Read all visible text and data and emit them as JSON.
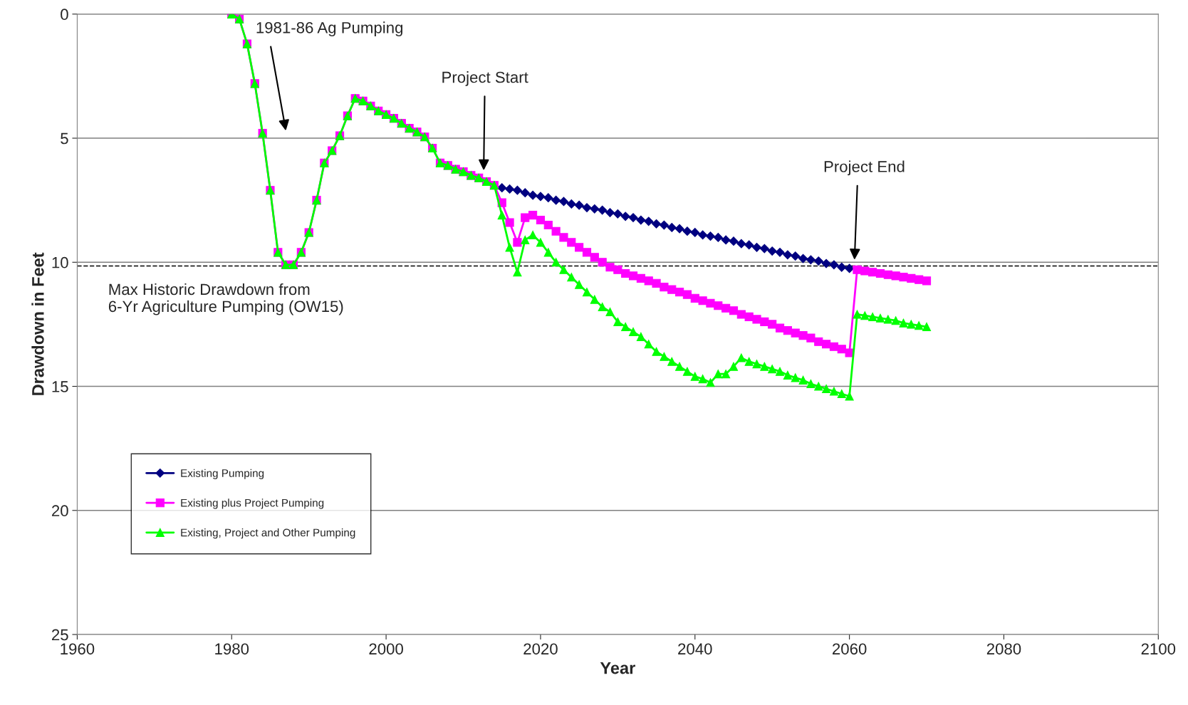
{
  "chart_data": {
    "type": "line",
    "xlabel": "Year",
    "ylabel": "Drawdown in Feet",
    "x": [
      1980,
      1981,
      1982,
      1983,
      1984,
      1985,
      1986,
      1987,
      1988,
      1989,
      1990,
      1991,
      1992,
      1993,
      1994,
      1995,
      1996,
      1997,
      1998,
      1999,
      2000,
      2001,
      2002,
      2003,
      2004,
      2005,
      2006,
      2007,
      2008,
      2009,
      2010,
      2011,
      2012,
      2013,
      2014,
      2015,
      2016,
      2017,
      2018,
      2019,
      2020,
      2021,
      2022,
      2023,
      2024,
      2025,
      2026,
      2027,
      2028,
      2029,
      2030,
      2031,
      2032,
      2033,
      2034,
      2035,
      2036,
      2037,
      2038,
      2039,
      2040,
      2041,
      2042,
      2043,
      2044,
      2045,
      2046,
      2047,
      2048,
      2049,
      2050,
      2051,
      2052,
      2053,
      2054,
      2055,
      2056,
      2057,
      2058,
      2059,
      2060,
      2061,
      2062,
      2063,
      2064,
      2065,
      2066,
      2067,
      2068,
      2069,
      2070
    ],
    "series": [
      {
        "name": "Existing Pumping",
        "color": "#000080",
        "marker": "diamond",
        "values": [
          null,
          null,
          null,
          null,
          null,
          null,
          null,
          null,
          null,
          null,
          null,
          null,
          null,
          null,
          null,
          null,
          null,
          null,
          null,
          null,
          null,
          null,
          null,
          null,
          null,
          null,
          null,
          null,
          null,
          null,
          null,
          null,
          null,
          null,
          null,
          7.0,
          7.05,
          7.1,
          7.2,
          7.3,
          7.35,
          7.4,
          7.5,
          7.55,
          7.65,
          7.7,
          7.8,
          7.85,
          7.9,
          8.0,
          8.05,
          8.15,
          8.2,
          8.3,
          8.35,
          8.45,
          8.5,
          8.6,
          8.65,
          8.75,
          8.8,
          8.9,
          8.95,
          9.0,
          9.1,
          9.15,
          9.25,
          9.3,
          9.4,
          9.45,
          9.55,
          9.6,
          9.7,
          9.75,
          9.85,
          9.9,
          9.95,
          10.05,
          10.1,
          10.2,
          10.25,
          null,
          null,
          null,
          null,
          null,
          null,
          null,
          null,
          null,
          null
        ]
      },
      {
        "name": "Existing plus Project Pumping",
        "color": "#ff00ff",
        "marker": "square",
        "values": [
          0,
          0.2,
          1.2,
          2.8,
          4.8,
          7.1,
          9.6,
          10.1,
          10.1,
          9.6,
          8.8,
          7.5,
          6.0,
          5.5,
          4.9,
          4.1,
          3.4,
          3.5,
          3.7,
          3.9,
          4.05,
          4.2,
          4.4,
          4.6,
          4.75,
          4.95,
          5.4,
          6.0,
          6.1,
          6.25,
          6.35,
          6.5,
          6.6,
          6.75,
          6.9,
          7.6,
          8.4,
          9.2,
          8.2,
          8.1,
          8.3,
          8.5,
          8.75,
          9.0,
          9.2,
          9.4,
          9.6,
          9.8,
          10.0,
          10.2,
          10.3,
          10.45,
          10.55,
          10.65,
          10.75,
          10.85,
          11.0,
          11.1,
          11.2,
          11.3,
          11.45,
          11.55,
          11.65,
          11.75,
          11.85,
          11.95,
          12.1,
          12.2,
          12.3,
          12.4,
          12.5,
          12.65,
          12.75,
          12.85,
          12.95,
          13.05,
          13.2,
          13.3,
          13.4,
          13.5,
          13.65,
          10.3,
          10.35,
          10.4,
          10.45,
          10.5,
          10.55,
          10.6,
          10.65,
          10.7,
          10.75
        ]
      },
      {
        "name": "Existing, Project and Other Pumping",
        "color": "#00ff00",
        "marker": "triangle",
        "values": [
          0,
          0.2,
          1.2,
          2.8,
          4.8,
          7.1,
          9.6,
          10.1,
          10.1,
          9.6,
          8.8,
          7.5,
          6.0,
          5.5,
          4.9,
          4.1,
          3.4,
          3.5,
          3.7,
          3.9,
          4.05,
          4.2,
          4.4,
          4.6,
          4.75,
          4.95,
          5.4,
          6.0,
          6.1,
          6.25,
          6.35,
          6.5,
          6.6,
          6.75,
          6.9,
          8.1,
          9.4,
          10.4,
          9.1,
          8.9,
          9.2,
          9.6,
          10.0,
          10.3,
          10.6,
          10.9,
          11.2,
          11.5,
          11.8,
          12.0,
          12.4,
          12.6,
          12.8,
          13.0,
          13.3,
          13.6,
          13.8,
          14.0,
          14.2,
          14.4,
          14.6,
          14.7,
          14.85,
          14.5,
          14.5,
          14.2,
          13.85,
          14.0,
          14.1,
          14.2,
          14.3,
          14.4,
          14.55,
          14.65,
          14.75,
          14.9,
          15.0,
          15.1,
          15.2,
          15.3,
          15.4,
          12.1,
          12.15,
          12.2,
          12.25,
          12.3,
          12.35,
          12.45,
          12.5,
          12.55,
          12.6
        ]
      }
    ],
    "xlim": [
      1960,
      2100
    ],
    "xticks": [
      1960,
      1980,
      2000,
      2020,
      2040,
      2060,
      2080,
      2100
    ],
    "ylim": [
      25,
      0
    ],
    "yticks": [
      0,
      5,
      10,
      15,
      20,
      25
    ],
    "grid": "y",
    "legend": "bottom left",
    "line_style": "solid",
    "ref_lines": [
      {
        "axis": "y",
        "value": 10.15,
        "label": "Max Historic Drawdown from\n6-Yr Agriculture Pumping (OW15)",
        "line_style": "dashed",
        "color": "#000000"
      }
    ],
    "annotations": [
      "1981-86 Ag Pumping",
      "Project Start",
      "Project End"
    ]
  }
}
